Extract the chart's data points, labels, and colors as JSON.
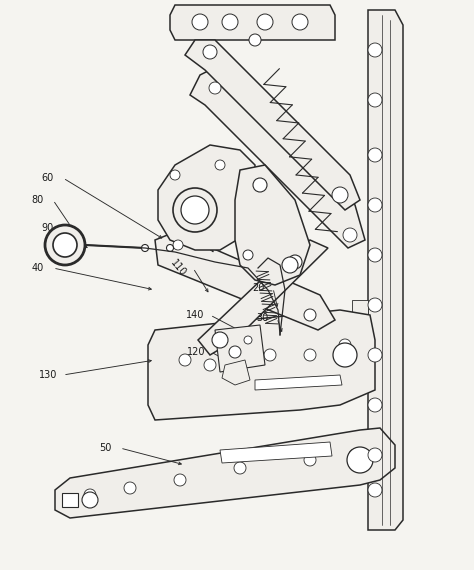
{
  "bg_color": "#f5f4f0",
  "line_color": "#2a2a2a",
  "label_color": "#1a1a1a",
  "fig_width": 4.74,
  "fig_height": 5.7,
  "dpi": 100
}
